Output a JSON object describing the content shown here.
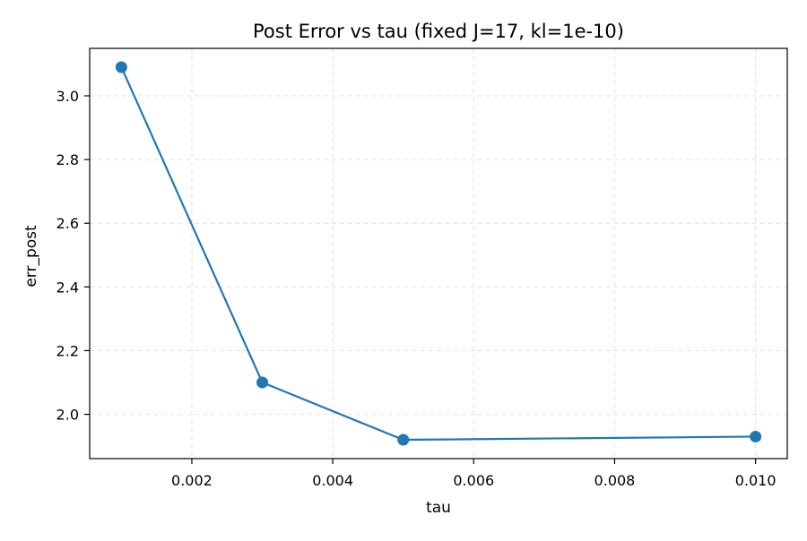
{
  "chart_data": {
    "type": "line",
    "title": "Post Error vs tau (fixed J=17, kl=1e-10)",
    "xlabel": "tau",
    "ylabel": "err_post",
    "x": [
      0.001,
      0.003,
      0.005,
      0.01
    ],
    "series": [
      {
        "values": [
          3.09,
          2.1,
          1.92,
          1.93
        ],
        "color": "#1f77b4",
        "marker": "circle"
      }
    ],
    "xlim": [
      0.00055,
      0.01045
    ],
    "ylim": [
      1.861,
      3.149
    ],
    "xticks": [
      0.002,
      0.004,
      0.006,
      0.008,
      0.01
    ],
    "xtick_labels": [
      "0.002",
      "0.004",
      "0.006",
      "0.008",
      "0.010"
    ],
    "yticks": [
      2.0,
      2.2,
      2.4,
      2.6,
      2.8,
      3.0
    ],
    "ytick_labels": [
      "2.0",
      "2.2",
      "2.4",
      "2.6",
      "2.8",
      "3.0"
    ],
    "grid": true,
    "grid_style": "dashed",
    "legend": "none"
  }
}
